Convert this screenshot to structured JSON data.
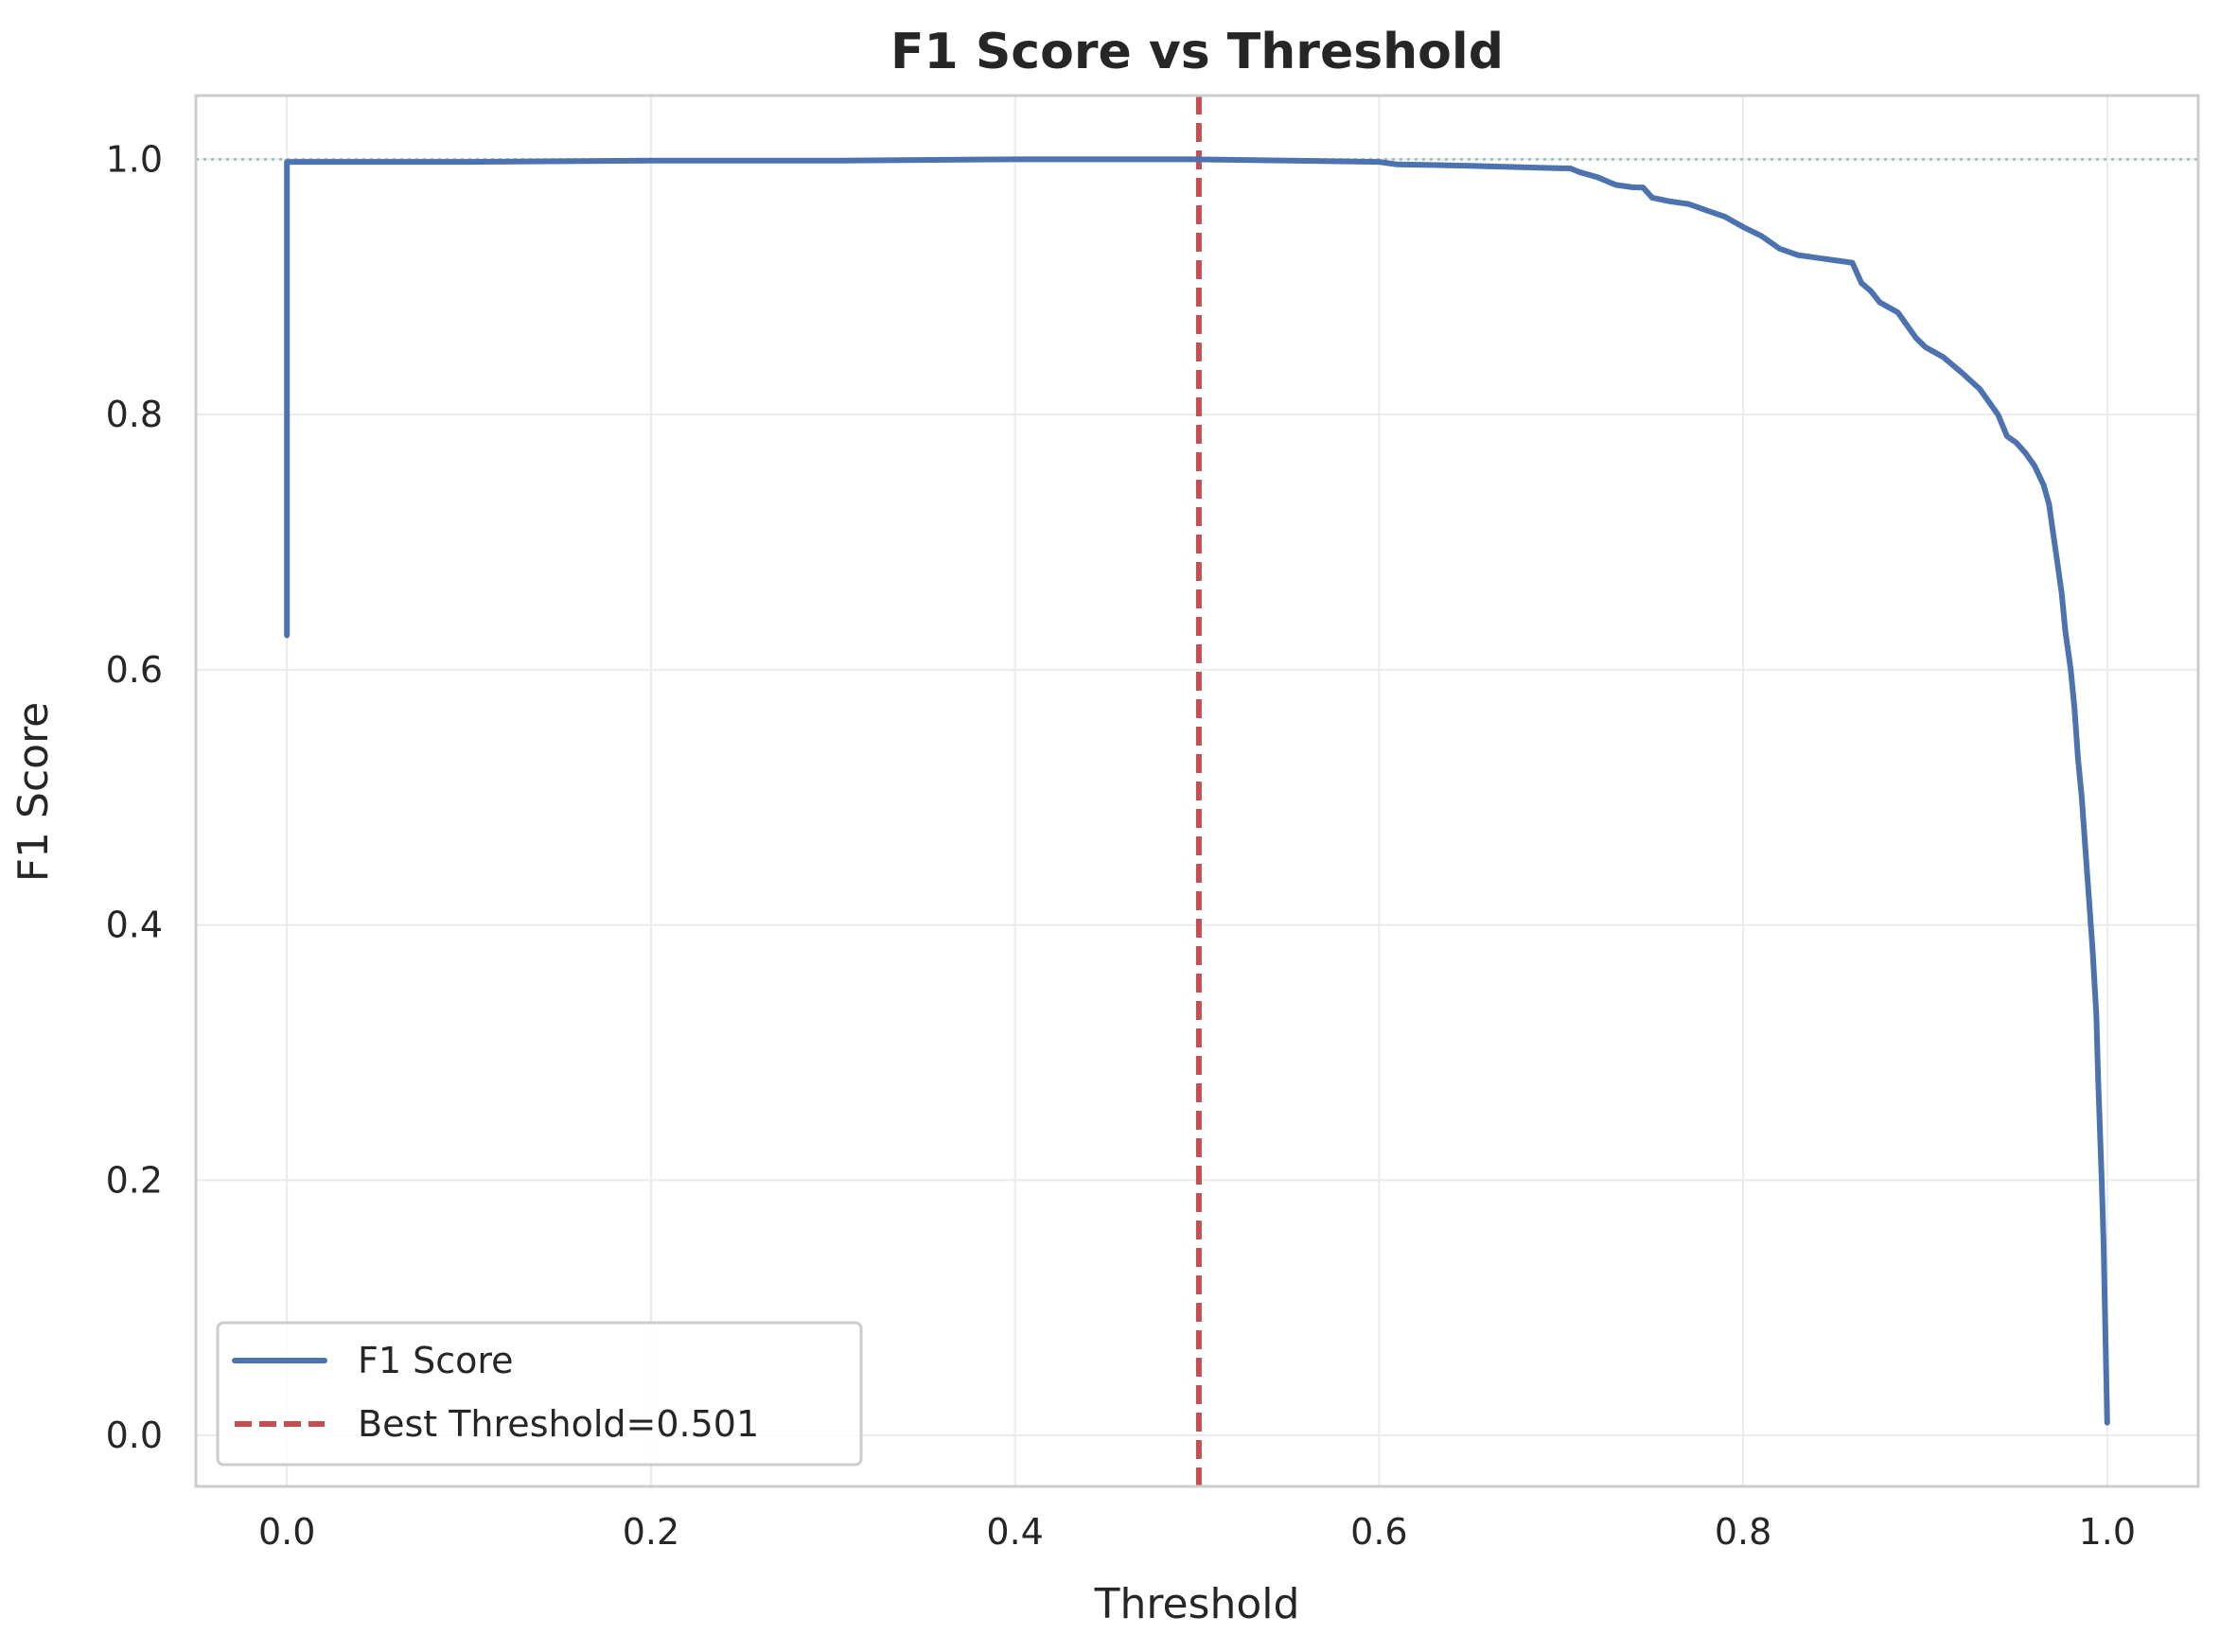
{
  "chart_data": {
    "type": "line",
    "title": "F1 Score vs Threshold",
    "xlabel": "Threshold",
    "ylabel": "F1 Score",
    "xlim": [
      -0.05,
      1.05
    ],
    "ylim": [
      -0.04,
      1.05
    ],
    "x_ticks": [
      "0.0",
      "0.2",
      "0.4",
      "0.6",
      "0.8",
      "1.0"
    ],
    "y_ticks": [
      "0.0",
      "0.2",
      "0.4",
      "0.6",
      "0.8",
      "1.0"
    ],
    "grid": true,
    "legend_position": "lower-left",
    "series": [
      {
        "name": "F1 Score",
        "color": "#4c72b0",
        "x": [
          0.0,
          0.0,
          0.1,
          0.2,
          0.3,
          0.4,
          0.5,
          0.6,
          0.61,
          0.65,
          0.7,
          0.705,
          0.71,
          0.72,
          0.73,
          0.74,
          0.745,
          0.75,
          0.76,
          0.77,
          0.78,
          0.79,
          0.8,
          0.81,
          0.82,
          0.83,
          0.84,
          0.85,
          0.86,
          0.865,
          0.87,
          0.875,
          0.88,
          0.885,
          0.89,
          0.895,
          0.9,
          0.91,
          0.92,
          0.93,
          0.935,
          0.94,
          0.945,
          0.95,
          0.955,
          0.96,
          0.965,
          0.968,
          0.97,
          0.972,
          0.975,
          0.977,
          0.98,
          0.982,
          0.984,
          0.986,
          0.988,
          0.99,
          0.992,
          0.994,
          0.995,
          0.996,
          0.997,
          0.998,
          0.999,
          1.0
        ],
        "values": [
          0.627,
          0.998,
          0.998,
          0.999,
          0.999,
          1.0,
          1.0,
          0.998,
          0.996,
          0.995,
          0.993,
          0.993,
          0.99,
          0.986,
          0.98,
          0.978,
          0.978,
          0.97,
          0.967,
          0.965,
          0.96,
          0.955,
          0.947,
          0.94,
          0.93,
          0.925,
          0.923,
          0.921,
          0.919,
          0.903,
          0.897,
          0.888,
          0.884,
          0.88,
          0.87,
          0.86,
          0.853,
          0.845,
          0.833,
          0.82,
          0.81,
          0.8,
          0.783,
          0.778,
          0.77,
          0.76,
          0.745,
          0.73,
          0.71,
          0.69,
          0.66,
          0.63,
          0.6,
          0.57,
          0.53,
          0.5,
          0.46,
          0.42,
          0.38,
          0.33,
          0.28,
          0.24,
          0.2,
          0.15,
          0.08,
          0.01
        ]
      }
    ],
    "reference_lines": [
      {
        "name": "Best Threshold=0.501",
        "orientation": "vertical",
        "x": 0.501,
        "color": "#c44e52",
        "style": "dashed"
      },
      {
        "orientation": "horizontal",
        "y": 1.0,
        "color": "#8fbcb0",
        "style": "dotted"
      }
    ]
  }
}
